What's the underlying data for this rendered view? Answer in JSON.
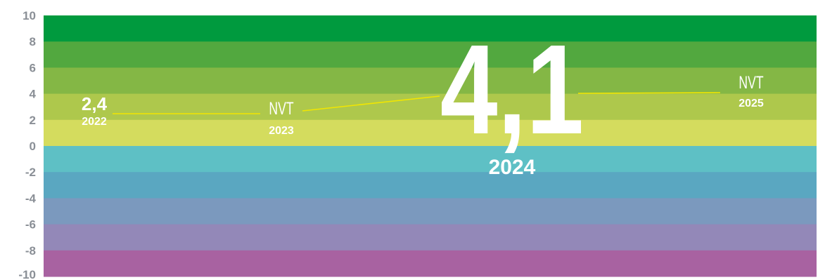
{
  "chart_data": {
    "type": "bar",
    "title": "",
    "xlabel": "",
    "ylabel": "",
    "ylim": [
      -10,
      10
    ],
    "yticks": [
      "10",
      "8",
      "6",
      "4",
      "2",
      "0",
      "-2",
      "-4",
      "-6",
      "-8",
      "-10"
    ],
    "grid": false,
    "legend": "none",
    "band_colors": [
      "#009a3e",
      "#52a83f",
      "#84b745",
      "#aec84c",
      "#d4dc5e",
      "#5ec0c5",
      "#5aa7c1",
      "#7b99be",
      "#9388b8",
      "#a862a1"
    ],
    "connector_color": "#f2e600",
    "points": [
      {
        "year": "2022",
        "value": 2.4,
        "label": "2,4"
      },
      {
        "year": "2023",
        "value": null,
        "label": "NVT"
      },
      {
        "year": "2024",
        "value": 4.1,
        "label": "4,1"
      },
      {
        "year": "2025",
        "value": null,
        "label": "NVT"
      }
    ]
  }
}
